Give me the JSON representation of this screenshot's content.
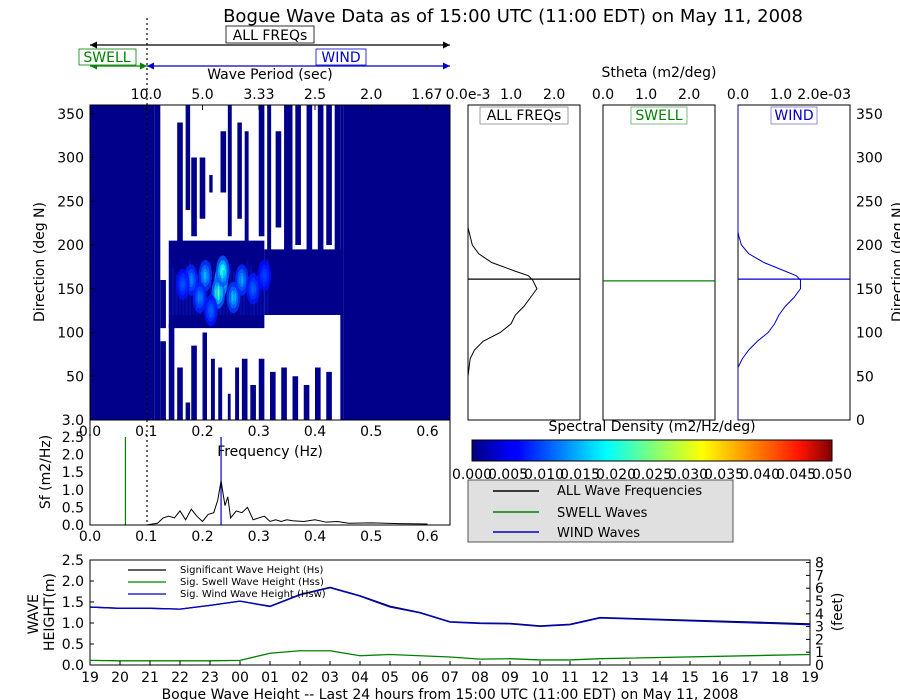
{
  "title": "Bogue Wave Data as of 15:00 UTC (11:00 EDT) on May 11, 2008",
  "colors": {
    "swell": "#008000",
    "wind": "#0000cc",
    "all": "#000000",
    "legend_bg": "#e0e0e0",
    "map_bg": "#00008b"
  },
  "band_labels": {
    "all": "ALL FREQs",
    "swell": "SWELL",
    "wind": "WIND"
  },
  "chart_data": [
    {
      "id": "spectrum",
      "type": "heatmap",
      "xlabel_top": "Wave Period (sec)",
      "xlabel_bottom": "Frequency (Hz)",
      "ylabel": "Direction (deg N)",
      "xlim": [
        0.0,
        0.64
      ],
      "ylim": [
        0,
        360
      ],
      "top_ticks": [
        "10.0",
        "5.0",
        "3.33",
        "2.5",
        "2.0",
        "1.67"
      ],
      "yticks": [
        "50",
        "100",
        "150",
        "200",
        "250",
        "300",
        "350"
      ],
      "xticks": [
        "0.0",
        "0.1",
        "0.2",
        "0.3",
        "0.4",
        "0.5",
        "0.6"
      ],
      "hot_spots": [
        {
          "f": 0.233,
          "d": 158,
          "v": 0.028
        },
        {
          "f": 0.228,
          "d": 145,
          "v": 0.02
        },
        {
          "f": 0.236,
          "d": 170,
          "v": 0.018
        },
        {
          "f": 0.255,
          "d": 140,
          "v": 0.013
        },
        {
          "f": 0.27,
          "d": 160,
          "v": 0.011
        },
        {
          "f": 0.205,
          "d": 165,
          "v": 0.012
        },
        {
          "f": 0.195,
          "d": 140,
          "v": 0.009
        },
        {
          "f": 0.18,
          "d": 160,
          "v": 0.009
        },
        {
          "f": 0.29,
          "d": 150,
          "v": 0.007
        },
        {
          "f": 0.31,
          "d": 165,
          "v": 0.005
        },
        {
          "f": 0.165,
          "d": 155,
          "v": 0.006
        },
        {
          "f": 0.215,
          "d": 125,
          "v": 0.007
        }
      ],
      "white_columns": [
        0.12,
        0.125,
        0.15,
        0.16,
        0.17,
        0.185,
        0.2,
        0.21,
        0.24,
        0.25,
        0.26,
        0.28,
        0.3,
        0.33,
        0.36,
        0.38,
        0.4,
        0.43
      ]
    },
    {
      "id": "sf",
      "type": "line",
      "ylabel": "Sf (m2/Hz)",
      "xlim": [
        0.0,
        0.64
      ],
      "ylim": [
        0.0,
        2.5
      ],
      "yticks": [
        "0.0",
        "0.5",
        "1.0",
        "1.5",
        "2.0",
        "2.5",
        "3.0"
      ],
      "xticks": [
        "0.0",
        "0.1",
        "0.2",
        "0.3",
        "0.4",
        "0.5",
        "0.6"
      ],
      "swell_cut_hz": 0.063,
      "wind_peak_hz": 0.233,
      "x": [
        0.0,
        0.05,
        0.08,
        0.1,
        0.12,
        0.13,
        0.14,
        0.15,
        0.16,
        0.17,
        0.18,
        0.19,
        0.2,
        0.21,
        0.22,
        0.227,
        0.233,
        0.24,
        0.245,
        0.25,
        0.26,
        0.27,
        0.28,
        0.29,
        0.3,
        0.31,
        0.32,
        0.33,
        0.34,
        0.35,
        0.36,
        0.38,
        0.4,
        0.42,
        0.44,
        0.46,
        0.5,
        0.55,
        0.6
      ],
      "values": [
        0.0,
        0.0,
        0.0,
        0.0,
        0.05,
        0.2,
        0.25,
        0.2,
        0.4,
        0.15,
        0.45,
        0.25,
        0.1,
        0.3,
        0.35,
        0.7,
        1.25,
        0.55,
        0.8,
        0.2,
        0.4,
        0.35,
        0.5,
        0.15,
        0.2,
        0.25,
        0.1,
        0.15,
        0.1,
        0.15,
        0.12,
        0.1,
        0.15,
        0.08,
        0.1,
        0.05,
        0.06,
        0.04,
        0.03
      ]
    },
    {
      "id": "sdir_all",
      "type": "line",
      "label": "ALL FREQs",
      "top_ticks": [
        "0.0e-3",
        "1.0",
        "2.0"
      ],
      "xlim": [
        0.0,
        2.6
      ],
      "ylim": [
        0,
        360
      ],
      "peak_dir": 161,
      "d": [
        0,
        50,
        70,
        80,
        90,
        100,
        110,
        120,
        130,
        140,
        150,
        160,
        165,
        170,
        180,
        190,
        200,
        210,
        220,
        360
      ],
      "values": [
        0.0,
        0.0,
        0.05,
        0.15,
        0.35,
        0.75,
        1.0,
        1.1,
        1.3,
        1.45,
        1.6,
        1.5,
        1.4,
        1.1,
        0.55,
        0.25,
        0.1,
        0.05,
        0.0,
        0.0
      ]
    },
    {
      "id": "sdir_swell",
      "type": "line",
      "label": "SWELL",
      "top_ticks": [
        "0.0",
        "1.0",
        "2.0"
      ],
      "xlim": [
        0.0,
        2.6
      ],
      "ylim": [
        0,
        360
      ],
      "peak_dir": 159
    },
    {
      "id": "sdir_wind",
      "type": "line",
      "label": "WIND",
      "xlabel_top": "Stheta (m2/deg)",
      "top_ticks": [
        "0.0",
        "1.0",
        "2.0e-03"
      ],
      "yticks_right": [
        "0",
        "50",
        "100",
        "150",
        "200",
        "250",
        "300",
        "350"
      ],
      "ylabel_right": "Direction (deg N)",
      "xlim": [
        0.0,
        2.6
      ],
      "ylim": [
        0,
        360
      ],
      "peak_dir": 161,
      "d": [
        0,
        60,
        70,
        80,
        90,
        100,
        110,
        120,
        130,
        140,
        150,
        160,
        165,
        170,
        180,
        190,
        200,
        210,
        215,
        360
      ],
      "values": [
        0.0,
        0.0,
        0.1,
        0.25,
        0.45,
        0.7,
        0.85,
        0.95,
        1.1,
        1.3,
        1.45,
        1.45,
        1.35,
        1.1,
        0.6,
        0.25,
        0.08,
        0.02,
        0.0,
        0.0
      ]
    },
    {
      "id": "colorbar",
      "type": "heatmap",
      "label": "Spectral Density (m2/Hz/deg)",
      "ticks": [
        "0.000",
        "0.005",
        "0.010",
        "0.015",
        "0.020",
        "0.025",
        "0.030",
        "0.035",
        "0.040",
        "0.045",
        "0.050"
      ]
    },
    {
      "id": "height",
      "type": "line",
      "xlabel": "Bogue Wave Height -- Last 24 hours from 15:00 UTC (11:00 EDT) on May 11, 2008",
      "ylabel": "WAVE HEIGHT(m)",
      "ylabel_right": "(feet)",
      "ylim": [
        0.0,
        2.5
      ],
      "yticks": [
        "0.0",
        "0.5",
        "1.0",
        "1.5",
        "2.0",
        "2.5"
      ],
      "yticks_right": [
        "0",
        "1",
        "2",
        "3",
        "4",
        "5",
        "6",
        "7",
        "8"
      ],
      "categories": [
        "19",
        "20",
        "21",
        "22",
        "23",
        "00",
        "01",
        "02",
        "03",
        "04",
        "05",
        "06",
        "07",
        "08",
        "09",
        "10",
        "11",
        "12",
        "13",
        "14",
        "15",
        "16",
        "17",
        "18",
        "19"
      ],
      "legend": [
        "Significant Wave Height (Hs)",
        "Sig. Swell Wave Height (Hss)",
        "Sig. Wind Wave Height (Hsw)"
      ],
      "series": [
        {
          "name": "Significant Wave Height (Hs)",
          "x": [
            0,
            1,
            2,
            3,
            4,
            5,
            6,
            7,
            8,
            9,
            10,
            11,
            12,
            13,
            14,
            15,
            16,
            17,
            24
          ],
          "values": [
            1.38,
            1.35,
            1.35,
            1.33,
            1.42,
            1.52,
            1.4,
            1.68,
            1.85,
            1.65,
            1.4,
            1.25,
            1.03,
            1.0,
            0.99,
            0.93,
            0.97,
            1.13,
            0.98
          ]
        },
        {
          "name": "Sig. Swell Wave Height (Hss)",
          "x": [
            0,
            1,
            2,
            3,
            4,
            5,
            6,
            7,
            8,
            9,
            10,
            11,
            12,
            13,
            14,
            15,
            16,
            17,
            24
          ],
          "values": [
            0.11,
            0.1,
            0.1,
            0.1,
            0.1,
            0.11,
            0.28,
            0.34,
            0.34,
            0.22,
            0.25,
            0.22,
            0.19,
            0.14,
            0.15,
            0.12,
            0.12,
            0.15,
            0.25
          ]
        },
        {
          "name": "Sig. Wind Wave Height (Hsw)",
          "x": [
            0,
            1,
            2,
            3,
            4,
            5,
            6,
            7,
            8,
            9,
            10,
            11,
            12,
            13,
            14,
            15,
            16,
            17,
            24
          ],
          "values": [
            1.38,
            1.35,
            1.35,
            1.33,
            1.42,
            1.52,
            1.39,
            1.67,
            1.84,
            1.64,
            1.38,
            1.24,
            1.02,
            0.99,
            0.98,
            0.92,
            0.96,
            1.12,
            0.96
          ]
        }
      ]
    }
  ],
  "legend_box": [
    "ALL Wave Frequencies",
    "SWELL Waves",
    "WIND Waves"
  ]
}
